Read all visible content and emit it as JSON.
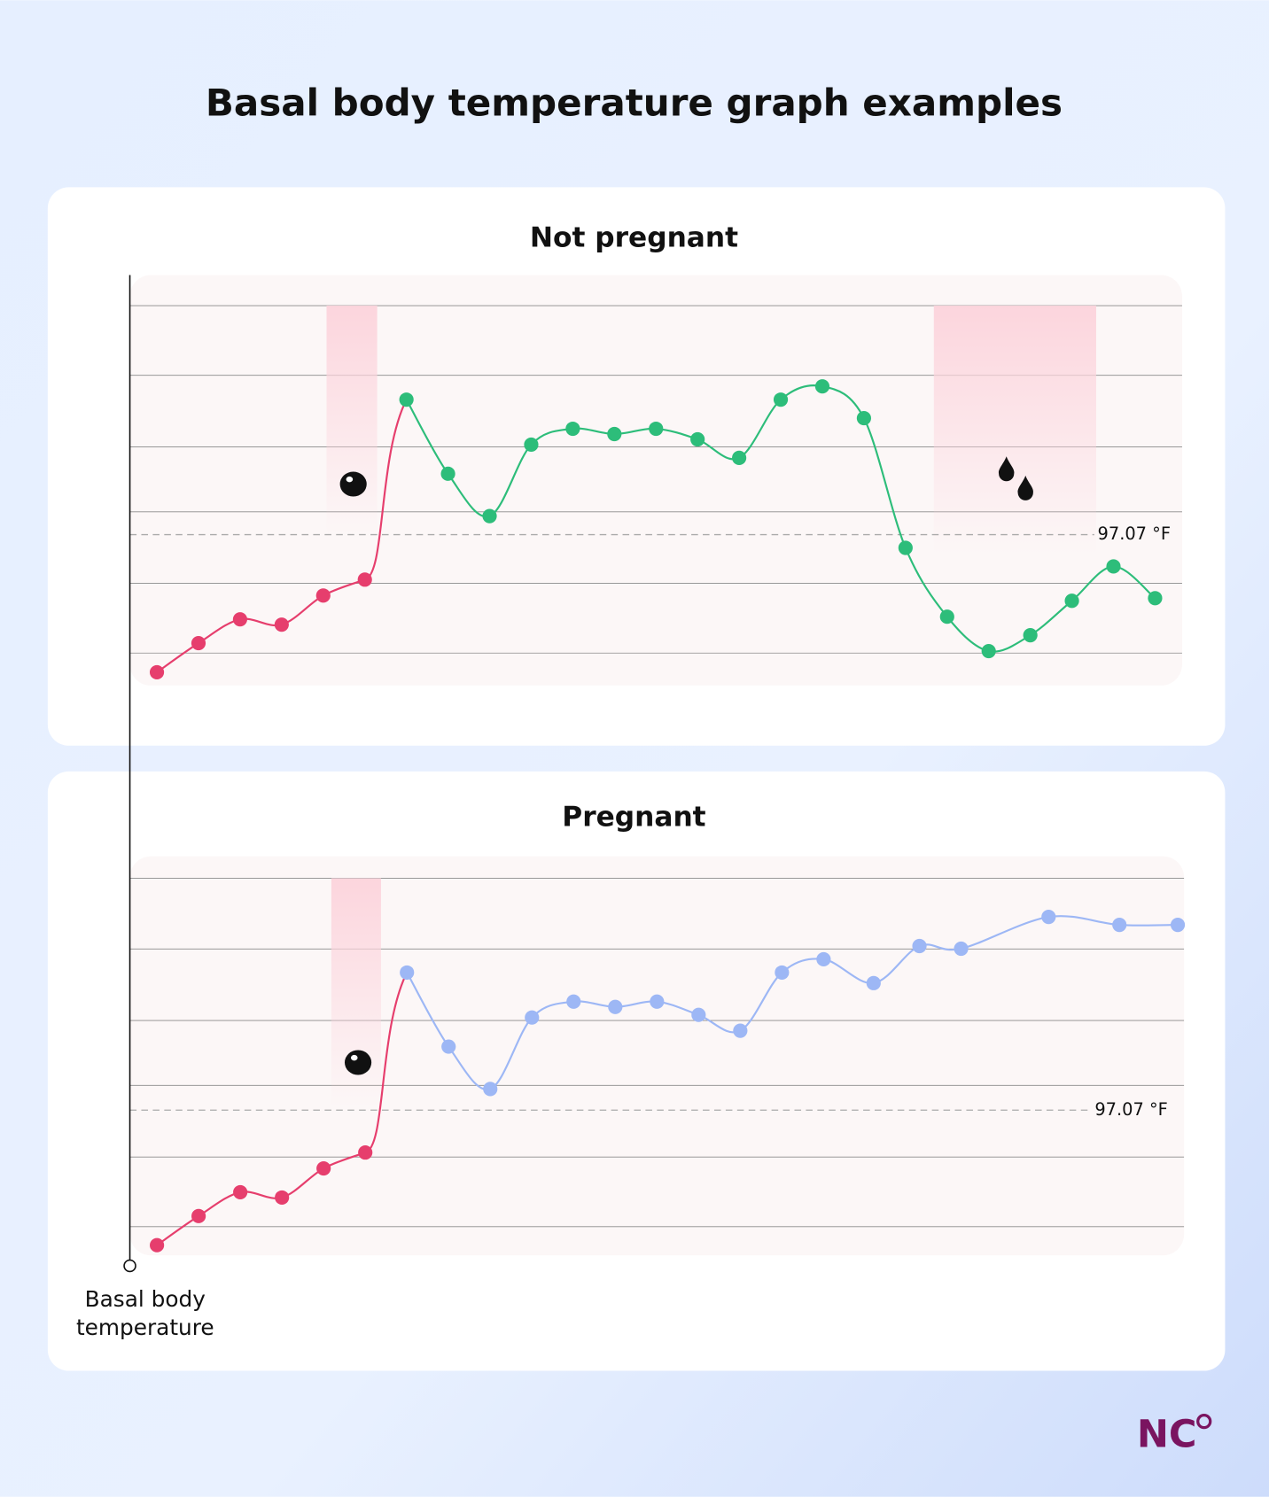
{
  "title": "Basal body temperature graph examples",
  "y_axis_label": [
    "Basal body",
    "temperature"
  ],
  "logo": "NC",
  "chart_data": [
    {
      "type": "line",
      "title": "Not pregnant",
      "xlim": [
        0.35,
        25.65
      ],
      "ylim": [
        96.5,
        98.0
      ],
      "reference": {
        "value": 97.07,
        "label": "97.07 °F"
      },
      "series": [
        {
          "color": "#e63e6d",
          "x": [
            1,
            2,
            3,
            4,
            5,
            6
          ],
          "values": [
            96.55,
            96.66,
            96.75,
            96.73,
            96.84,
            96.9
          ]
        },
        {
          "color": "#2dbd7a",
          "x": [
            7,
            8,
            9,
            10,
            11,
            12,
            13,
            14,
            15,
            16,
            17,
            18,
            19,
            20,
            21,
            22,
            23,
            24,
            25
          ],
          "values": [
            97.58,
            97.3,
            97.14,
            97.41,
            97.47,
            97.45,
            97.47,
            97.43,
            97.36,
            97.58,
            97.63,
            97.51,
            97.02,
            96.76,
            96.63,
            96.69,
            96.82,
            96.95,
            96.83
          ]
        }
      ]
    },
    {
      "type": "line",
      "title": "Pregnant",
      "xlim": [
        0.35,
        25.65
      ],
      "ylim": [
        96.5,
        98.0
      ],
      "reference": {
        "value": 97.07,
        "label": "97.07 °F"
      },
      "series": [
        {
          "color": "#e63e6d",
          "x": [
            1,
            2,
            3,
            4,
            5,
            6
          ],
          "values": [
            96.56,
            96.67,
            96.76,
            96.74,
            96.85,
            96.91
          ]
        },
        {
          "color": "#9db7f5",
          "x": [
            7,
            8,
            9,
            10,
            11,
            12,
            13,
            14,
            15,
            16,
            17,
            18.2,
            19.3,
            20.3,
            22.4,
            24.1,
            25.5
          ],
          "values": [
            97.59,
            97.31,
            97.15,
            97.42,
            97.48,
            97.46,
            97.48,
            97.43,
            97.37,
            97.59,
            97.64,
            97.55,
            97.69,
            97.68,
            97.8,
            97.77,
            97.77
          ]
        }
      ]
    }
  ]
}
